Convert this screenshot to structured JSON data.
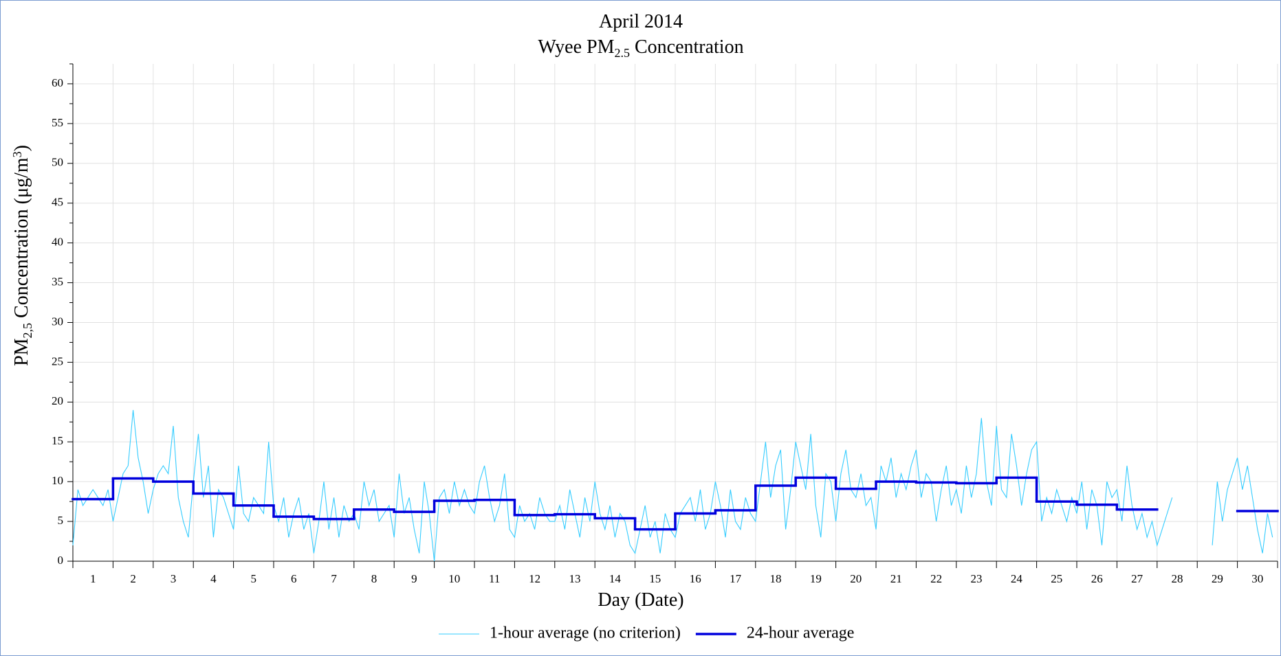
{
  "chart_data": {
    "type": "line",
    "title": "April 2014",
    "subtitle": [
      "Wyee PM",
      "2.5",
      " Concentration"
    ],
    "xlabel": "Day (Date)",
    "ylabel": [
      "PM",
      "2,5",
      " Concentration (μg/m",
      "3",
      ")"
    ],
    "xlim": [
      0.5,
      30.5
    ],
    "xticks": [
      1,
      2,
      3,
      4,
      5,
      6,
      7,
      8,
      9,
      10,
      11,
      12,
      13,
      14,
      15,
      16,
      17,
      18,
      19,
      20,
      21,
      22,
      23,
      24,
      25,
      26,
      27,
      28,
      29,
      30
    ],
    "xminor_ticks": [
      0.5,
      1.5,
      2.5,
      3.5,
      4.5,
      5.5,
      6.5,
      7.5,
      8.5,
      9.5,
      10.5,
      11.5,
      12.5,
      13.5,
      14.5,
      15.5,
      16.5,
      17.5,
      18.5,
      19.5,
      20.5,
      21.5,
      22.5,
      23.5,
      24.5,
      25.5,
      26.5,
      27.5,
      28.5,
      29.5,
      30.5
    ],
    "ylim": [
      0,
      62.5
    ],
    "yticks": [
      0,
      5,
      10,
      15,
      20,
      25,
      30,
      35,
      40,
      45,
      50,
      55,
      60
    ],
    "yminor_ticks": [
      2.5,
      7.5,
      12.5,
      17.5,
      22.5,
      27.5,
      32.5,
      37.5,
      42.5,
      47.5,
      52.5,
      57.5,
      62.5
    ],
    "grid": true,
    "legend": "bottom",
    "series": [
      {
        "name": "1-hour average (no criterion)",
        "color": "#33ccff",
        "style": "line",
        "x": [
          0.5,
          0.625,
          0.75,
          0.875,
          1,
          1.125,
          1.25,
          1.375,
          1.5,
          1.625,
          1.75,
          1.875,
          2,
          2.125,
          2.25,
          2.375,
          2.5,
          2.625,
          2.75,
          2.875,
          3,
          3.125,
          3.25,
          3.375,
          3.5,
          3.625,
          3.75,
          3.875,
          4,
          4.125,
          4.25,
          4.375,
          4.5,
          4.625,
          4.75,
          4.875,
          5,
          5.125,
          5.25,
          5.375,
          5.5,
          5.625,
          5.75,
          5.875,
          6,
          6.125,
          6.25,
          6.375,
          6.5,
          6.625,
          6.75,
          6.875,
          7,
          7.125,
          7.25,
          7.375,
          7.5,
          7.625,
          7.75,
          7.875,
          8,
          8.125,
          8.25,
          8.375,
          8.5,
          8.625,
          8.75,
          8.875,
          9,
          9.125,
          9.25,
          9.375,
          9.5,
          9.625,
          9.75,
          9.875,
          10,
          10.125,
          10.25,
          10.375,
          10.5,
          10.625,
          10.75,
          10.875,
          11,
          11.125,
          11.25,
          11.375,
          11.5,
          11.625,
          11.75,
          11.875,
          12,
          12.125,
          12.25,
          12.375,
          12.5,
          12.625,
          12.75,
          12.875,
          13,
          13.125,
          13.25,
          13.375,
          13.5,
          13.625,
          13.75,
          13.875,
          14,
          14.125,
          14.25,
          14.375,
          14.5,
          14.625,
          14.75,
          14.875,
          15,
          15.125,
          15.25,
          15.375,
          15.5,
          15.625,
          15.75,
          15.875,
          16,
          16.125,
          16.25,
          16.375,
          16.5,
          16.625,
          16.75,
          16.875,
          17,
          17.125,
          17.25,
          17.375,
          17.5,
          17.625,
          17.75,
          17.875,
          18,
          18.125,
          18.25,
          18.375,
          18.5,
          18.625,
          18.75,
          18.875,
          19,
          19.125,
          19.25,
          19.375,
          19.5,
          19.625,
          19.75,
          19.875,
          20,
          20.125,
          20.25,
          20.375,
          20.5,
          20.625,
          20.75,
          20.875,
          21,
          21.125,
          21.25,
          21.375,
          21.5,
          21.625,
          21.75,
          21.875,
          22,
          22.125,
          22.25,
          22.375,
          22.5,
          22.625,
          22.75,
          22.875,
          23,
          23.125,
          23.25,
          23.375,
          23.5,
          23.625,
          23.75,
          23.875,
          24,
          24.125,
          24.25,
          24.375,
          24.5,
          24.625,
          24.75,
          24.875,
          25,
          25.125,
          25.25,
          25.375,
          25.5,
          25.625,
          25.75,
          25.875,
          26,
          26.125,
          26.25,
          26.375,
          26.5,
          26.625,
          26.75,
          26.875,
          27,
          27.125,
          27.25,
          27.375,
          27.5,
          27.625,
          27.75,
          27.875,
          28,
          28.125,
          28.25,
          28.375,
          28.5,
          28.625,
          28.75,
          28.875,
          29,
          29.125,
          29.25,
          29.375,
          29.5,
          29.625,
          29.75,
          29.875,
          30,
          30.125,
          30.25,
          30.375
        ],
        "values": [
          2,
          9,
          7,
          8,
          9,
          8,
          7,
          9,
          5,
          8,
          11,
          12,
          19,
          13,
          10,
          6,
          9,
          11,
          12,
          11,
          17,
          8,
          5,
          3,
          10,
          16,
          8,
          12,
          3,
          9,
          8,
          6,
          4,
          12,
          6,
          5,
          8,
          7,
          6,
          15,
          7,
          5,
          8,
          3,
          6,
          8,
          4,
          6,
          1,
          5,
          10,
          4,
          8,
          3,
          7,
          5,
          6,
          4,
          10,
          7,
          9,
          5,
          6,
          7,
          3,
          11,
          6,
          8,
          4,
          1,
          10,
          6,
          0,
          8,
          9,
          6,
          10,
          7,
          9,
          7,
          6,
          10,
          12,
          8,
          5,
          7,
          11,
          4,
          3,
          7,
          5,
          6,
          4,
          8,
          6,
          5,
          5,
          7,
          4,
          9,
          6,
          3,
          8,
          5,
          10,
          6,
          4,
          7,
          3,
          6,
          5,
          2,
          1,
          4,
          7,
          3,
          5,
          1,
          6,
          4,
          3,
          6,
          7,
          8,
          5,
          9,
          4,
          6,
          10,
          7,
          3,
          9,
          5,
          4,
          8,
          6,
          5,
          10,
          15,
          8,
          12,
          14,
          4,
          9,
          15,
          12,
          9,
          16,
          7,
          3,
          11,
          10,
          5,
          11,
          14,
          9,
          8,
          11,
          7,
          8,
          4,
          12,
          10,
          13,
          8,
          11,
          9,
          12,
          14,
          8,
          11,
          10,
          5,
          9,
          12,
          7,
          9,
          6,
          12,
          8,
          11,
          18,
          10,
          7,
          17,
          9,
          8,
          16,
          12,
          7,
          11,
          14,
          15,
          5,
          8,
          6,
          9,
          7,
          5,
          8,
          6,
          10,
          4,
          9,
          7,
          2,
          10,
          8,
          9,
          5,
          12,
          7,
          4,
          6,
          3,
          5,
          2,
          4,
          6,
          8,
          null,
          null,
          null,
          null,
          null,
          null,
          null,
          2,
          10,
          5,
          9,
          11,
          13,
          9,
          12,
          8,
          4,
          1,
          6,
          3
        ]
      },
      {
        "name": "24-hour average",
        "color": "#0000dd",
        "style": "step",
        "x": [
          1,
          2,
          3,
          4,
          5,
          6,
          7,
          8,
          9,
          10,
          11,
          12,
          13,
          14,
          15,
          16,
          17,
          18,
          19,
          20,
          21,
          22,
          23,
          24,
          25,
          26,
          27,
          28,
          29,
          30
        ],
        "values": [
          7.8,
          10.4,
          10.0,
          8.5,
          7.0,
          5.6,
          5.3,
          6.5,
          6.2,
          7.6,
          7.7,
          5.8,
          5.9,
          5.4,
          4.0,
          6.0,
          6.4,
          9.5,
          10.5,
          9.1,
          10.0,
          9.9,
          9.8,
          10.5,
          7.5,
          7.1,
          6.5,
          null,
          null,
          6.3
        ]
      }
    ]
  }
}
